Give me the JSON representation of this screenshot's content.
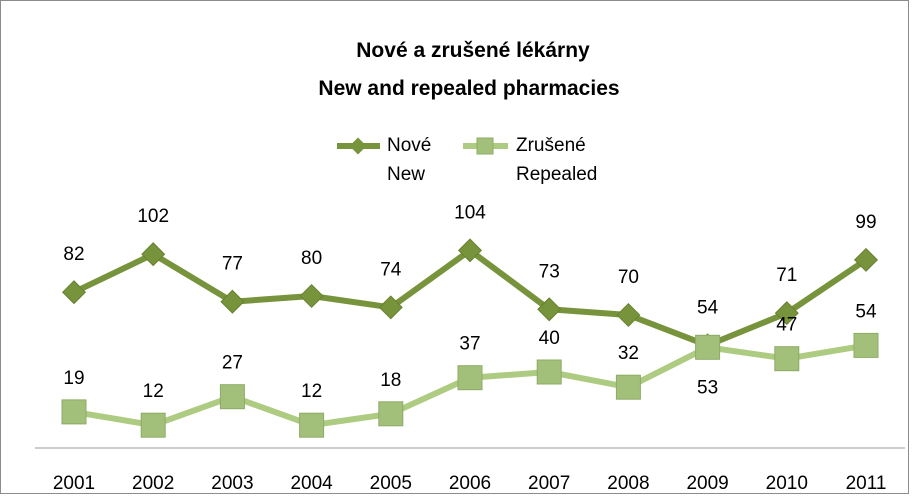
{
  "chart_data": {
    "type": "line",
    "title": [
      "Nové a zrušené lékárny",
      "New and repealed pharmacies"
    ],
    "categories": [
      "2001",
      "2002",
      "2003",
      "2004",
      "2005",
      "2006",
      "2007",
      "2008",
      "2009",
      "2010",
      "2011"
    ],
    "series": [
      {
        "name": [
          "Nové",
          "New"
        ],
        "values": [
          82,
          102,
          77,
          80,
          74,
          104,
          73,
          70,
          54,
          71,
          99
        ],
        "color": "#77933c",
        "marker": "diamond"
      },
      {
        "name": [
          "Zrušené",
          "Repealed"
        ],
        "values": [
          19,
          12,
          27,
          12,
          18,
          37,
          40,
          32,
          53,
          47,
          54
        ],
        "color": "#aecb82",
        "marker": "square"
      }
    ],
    "ylim": [
      0,
      140
    ],
    "legend": "top-center",
    "grid": false
  }
}
